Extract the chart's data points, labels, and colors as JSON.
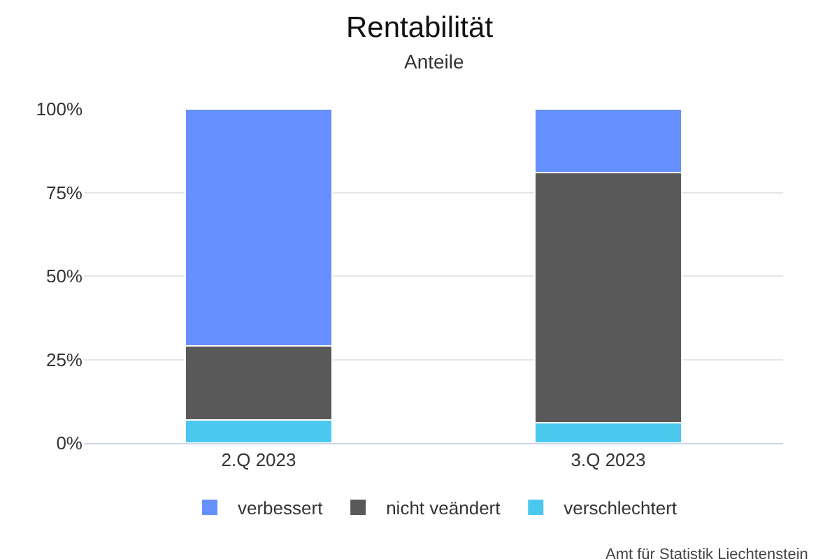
{
  "chart_data": {
    "type": "bar",
    "title": "Rentabilität",
    "subtitle": "Anteile",
    "stacked": true,
    "categories": [
      "2.Q 2023",
      "3.Q 2023"
    ],
    "series": [
      {
        "name": "verschlechtert",
        "color": "#4bc8f0",
        "values": [
          7,
          6
        ]
      },
      {
        "name": "nicht veändert",
        "color": "#595959",
        "values": [
          22,
          75
        ]
      },
      {
        "name": "verbessert",
        "color": "#6690ff",
        "values": [
          71,
          19
        ]
      }
    ],
    "ylim": [
      0,
      100
    ],
    "yticks": [
      {
        "value": 0,
        "label": "0%"
      },
      {
        "value": 25,
        "label": "25%"
      },
      {
        "value": 50,
        "label": "50%"
      },
      {
        "value": 75,
        "label": "75%"
      },
      {
        "value": 100,
        "label": "100%"
      }
    ],
    "grid": "y",
    "legend": "bottom",
    "annotations": [
      "Amt für Statistik Liechtenstein"
    ]
  }
}
